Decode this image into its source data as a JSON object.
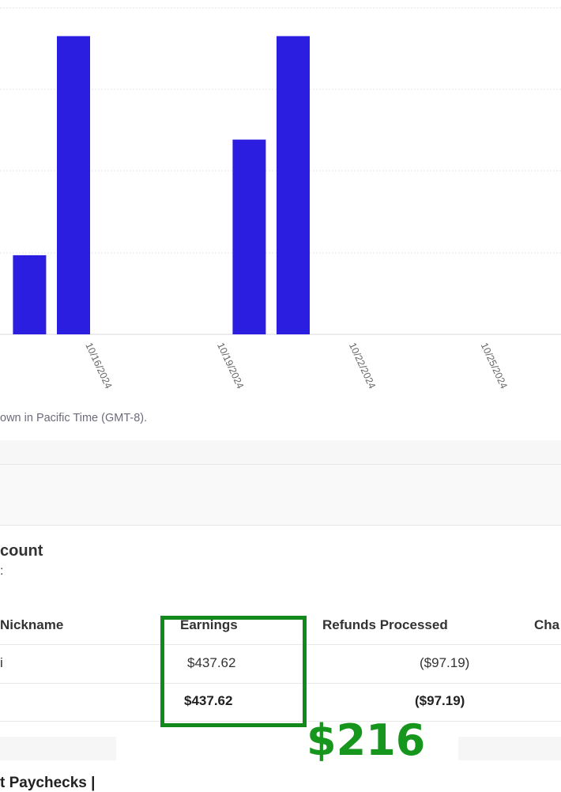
{
  "chart_data": {
    "type": "bar",
    "x_axis_dates": [
      "10/16/2024",
      "10/19/2024",
      "10/22/2024",
      "10/25/2024"
    ],
    "bars": [
      {
        "date": "10/15/2024",
        "value": 0.26
      },
      {
        "date": "10/16/2024",
        "value": 0.98
      },
      {
        "date": "10/20/2024",
        "value": 0.64
      },
      {
        "date": "10/21/2024",
        "value": 0.98
      }
    ],
    "ylim": [
      0,
      1
    ],
    "grid": true,
    "bar_color": "#2b1ee0"
  },
  "chart_note": "own in Pacific Time (GMT-8).",
  "section": {
    "title": "count",
    "subtitle": ":"
  },
  "table": {
    "headers": [
      "Nickname",
      "Earnings",
      "Refunds Processed",
      "Cha"
    ],
    "rows": [
      {
        "nickname": "i",
        "earnings": "$437.62",
        "refunds": "($97.19)"
      },
      {
        "nickname": "",
        "earnings": "$437.62",
        "refunds": "($97.19)"
      }
    ]
  },
  "overlay": {
    "amount": "$216",
    "highlight_color": "#12891b"
  },
  "footer": {
    "text": "t Paychecks |"
  }
}
